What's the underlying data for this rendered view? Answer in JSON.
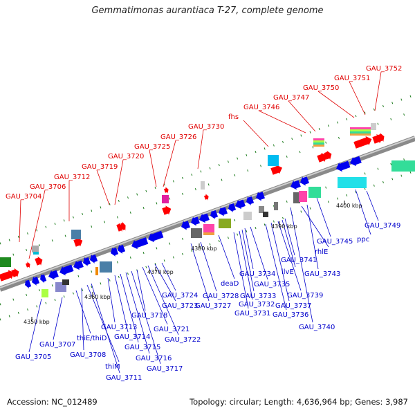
{
  "title": "Gemmatimonas aurantiaca T-27, complete genome",
  "footer": {
    "accession": "Accession: NC_012489",
    "summary": "Topology: circular; Length: 4,636,964 bp; Genes: 3,987"
  },
  "colors": {
    "top_label": "#e00000",
    "bottom_label": "#0000cc",
    "forward_gene": "#ff0000",
    "reverse_gene": "#0000ee",
    "backbone": "#888888",
    "tick_mark": "#1a7a1a"
  },
  "scale_ticks": [
    "4350 kbp",
    "4360 kbp",
    "4370 kbp",
    "4380 kbp",
    "4390 kbp",
    "4400 kbp"
  ],
  "top_labels": [
    "GAU_3704",
    "GAU_3706",
    "GAU_3712",
    "GAU_3719",
    "GAU_3720",
    "GAU_3725",
    "GAU_3726",
    "GAU_3730",
    "fhs",
    "GAU_3746",
    "GAU_3747",
    "GAU_3750",
    "GAU_3751",
    "GAU_3752"
  ],
  "bottom_labels": [
    "GAU_3705",
    "GAU_3707",
    "thiE/thiD",
    "GAU_3708",
    "thiM",
    "GAU_3711",
    "GAU_3713",
    "GAU_3714",
    "GAU_3715",
    "GAU_3716",
    "GAU_3717",
    "GAU_3718",
    "GAU_3721",
    "GAU_3722",
    "GAU_3723",
    "GAU_3724",
    "GAU_3727",
    "GAU_3728",
    "deaD",
    "GAU_3731",
    "GAU_3732",
    "GAU_3733",
    "GAU_3734",
    "GAU_3735",
    "GAU_3736",
    "GAU_3737",
    "GAU_3739",
    "ilvE",
    "GAU_3741",
    "GAU_3740",
    "rhlE",
    "GAU_3743",
    "GAU_3745",
    "ppc",
    "GAU_3749"
  ]
}
